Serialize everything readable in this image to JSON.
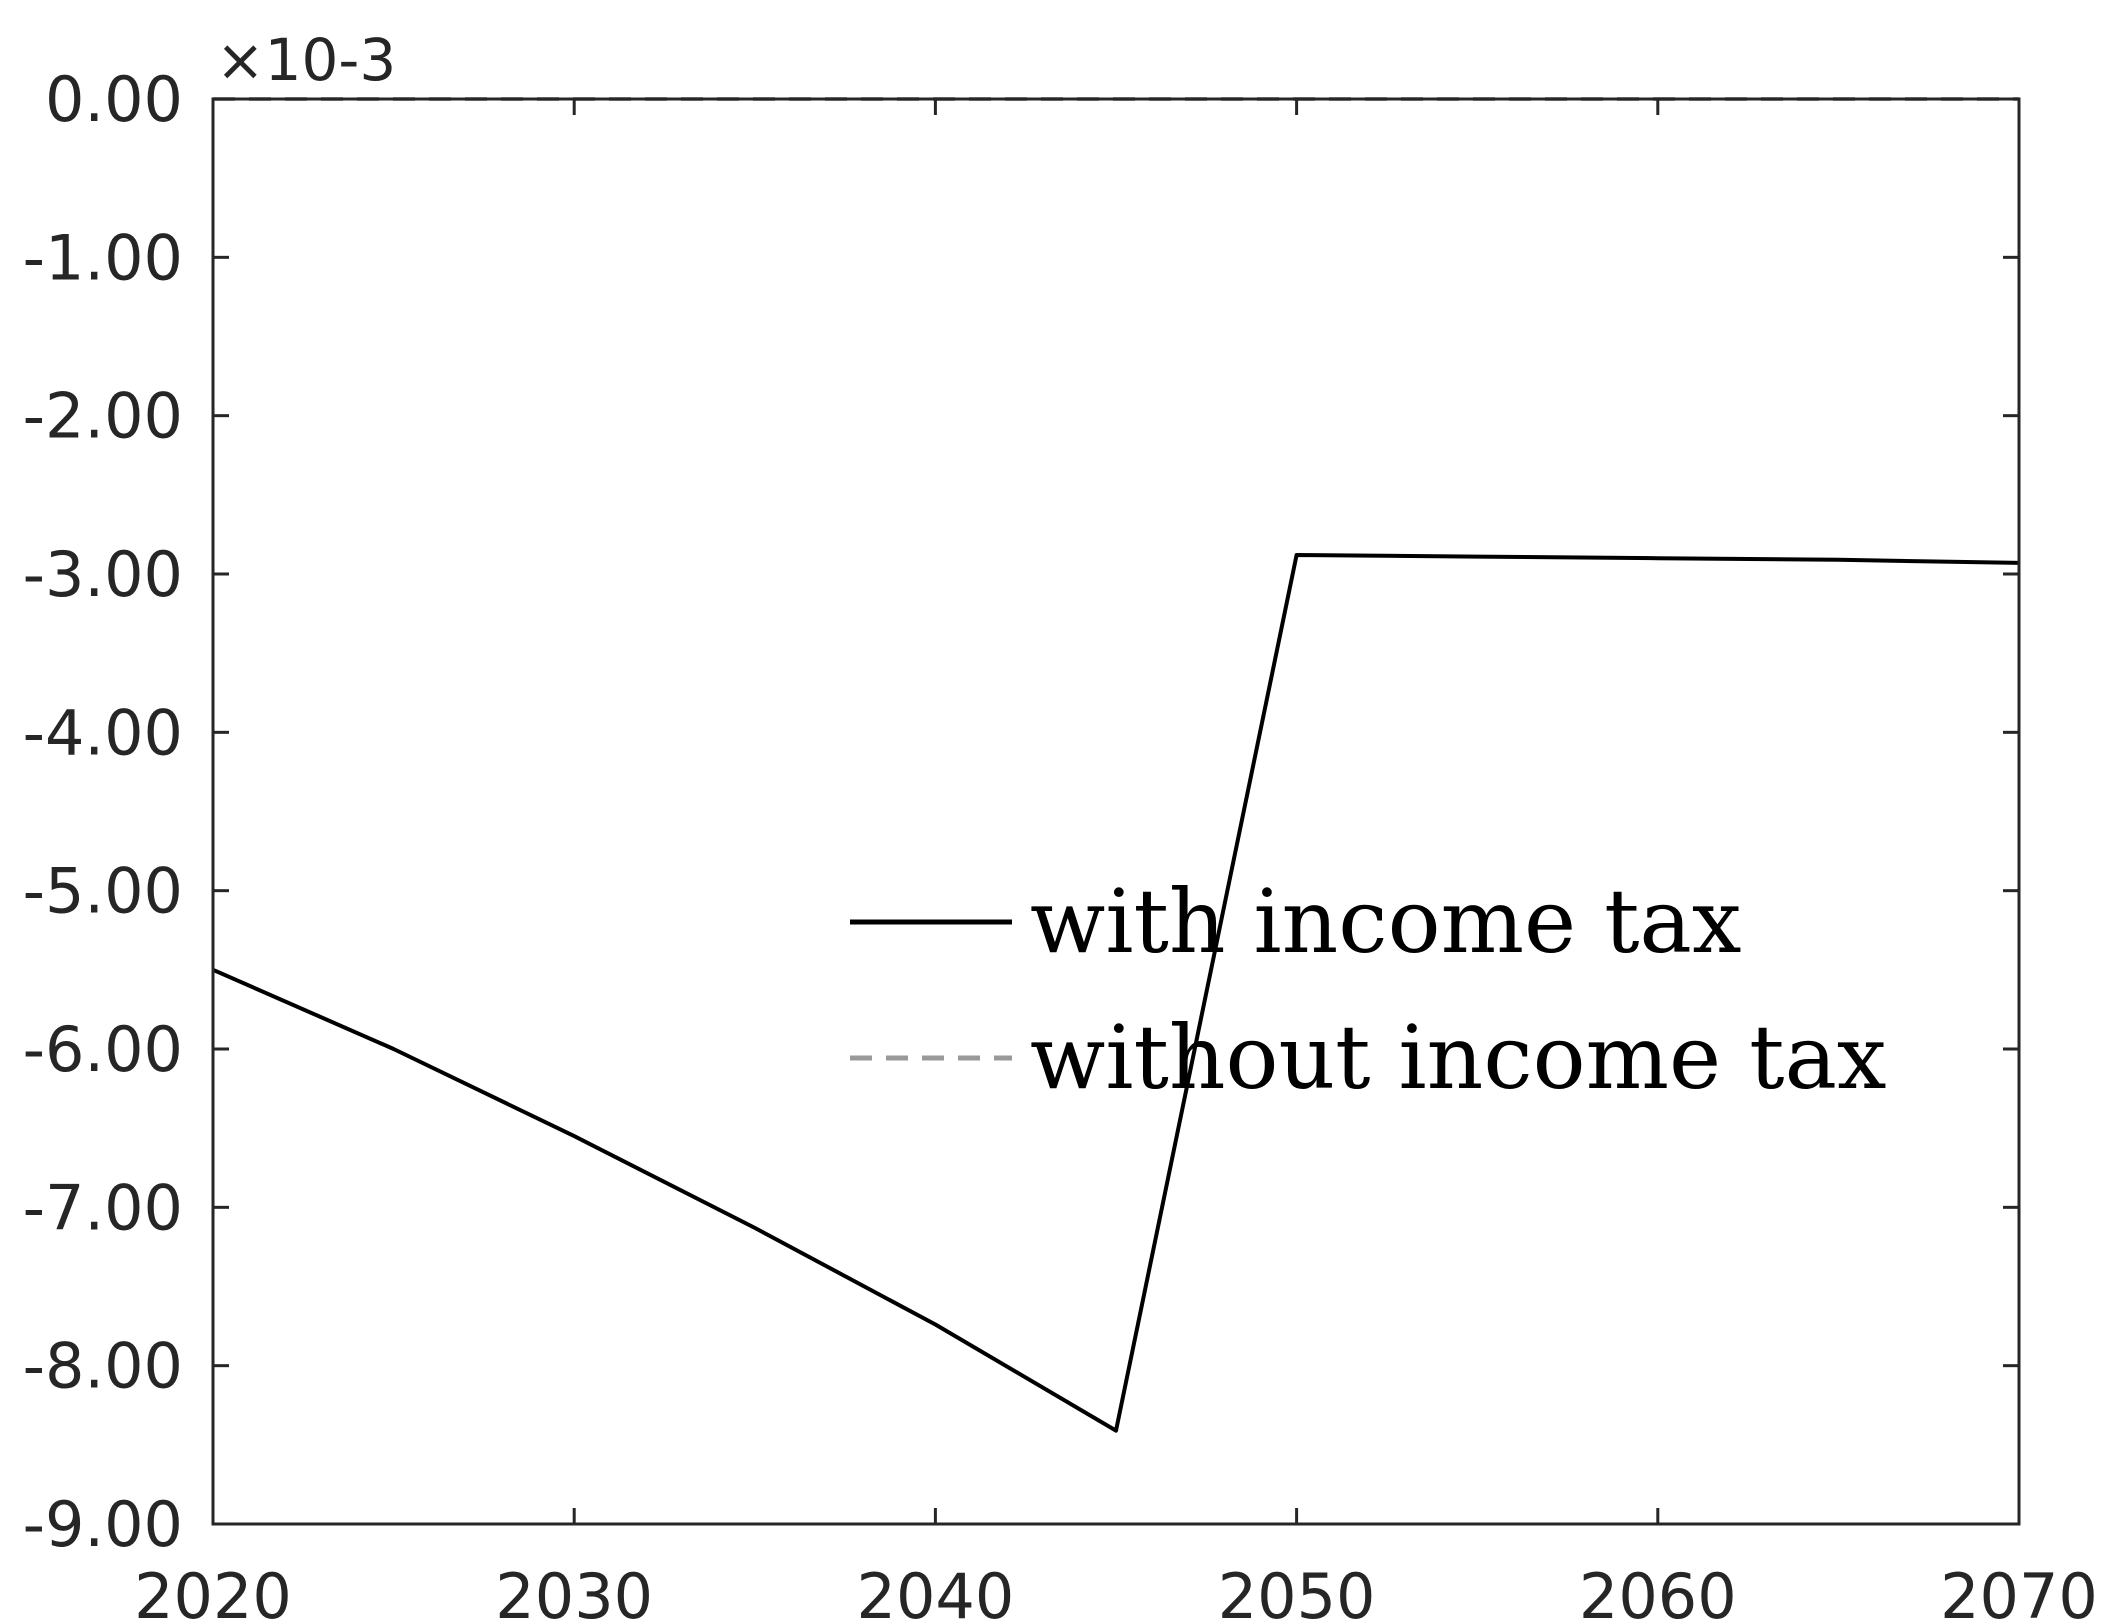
{
  "chart_data": {
    "type": "line",
    "title": "",
    "xlabel": "",
    "ylabel": "",
    "xlim": [
      2020,
      2070
    ],
    "ylim": [
      -9.0,
      0.0
    ],
    "y_exponent": "×10-3",
    "x_ticks": [
      "2020",
      "2030",
      "2040",
      "2050",
      "2060",
      "2070"
    ],
    "y_ticks": [
      "0.00",
      "-1.00",
      "-2.00",
      "-3.00",
      "-4.00",
      "-5.00",
      "-6.00",
      "-7.00",
      "-8.00",
      "-9.00"
    ],
    "grid": false,
    "legend_position": "center-right",
    "series": [
      {
        "name": "with income tax",
        "color": "#000000",
        "style": "solid",
        "x": [
          2020,
          2025,
          2030,
          2035,
          2040,
          2045,
          2050,
          2055,
          2060,
          2065,
          2070
        ],
        "y": [
          -5.5,
          -6.0,
          -6.55,
          -7.13,
          -7.74,
          -8.41,
          -2.88,
          -2.89,
          -2.9,
          -2.91,
          -2.93
        ]
      },
      {
        "name": "without income tax",
        "color": "#999999",
        "style": "dashed",
        "x": [
          2020,
          2070
        ],
        "y": [
          0.0,
          0.0
        ]
      }
    ]
  }
}
